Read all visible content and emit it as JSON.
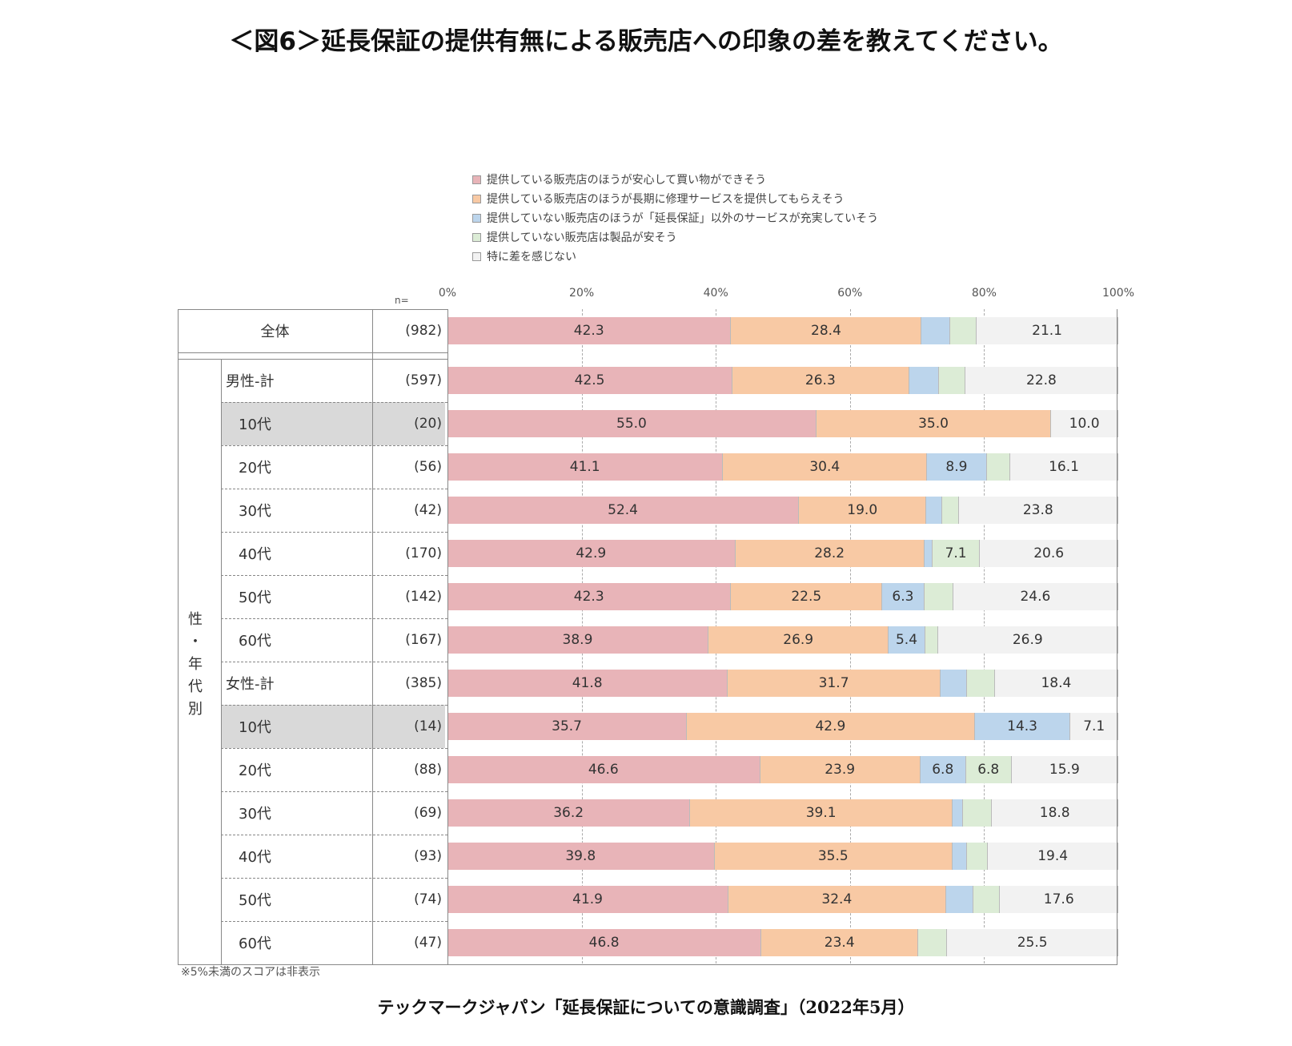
{
  "title": "＜図6＞延長保証の提供有無による販売店への印象の差を教えてください。",
  "source": "テックマークジャパン「延長保証についての意識調査」（2022年5月）",
  "footnote": "※5%未満のスコアは非表示",
  "n_label": "n=",
  "side_label": "性・年代別",
  "colors": {
    "pink": "#e8b4b8",
    "orange": "#f8c9a4",
    "blue": "#bcd5ec",
    "green": "#dcecd6",
    "white": "#f2f2f2"
  },
  "chart_data": {
    "type": "bar",
    "orientation": "horizontal-stacked-100",
    "legend": [
      "提供している販売店のほうが安心して買い物ができそう",
      "提供している販売店のほうが長期に修理サービスを提供してもらえそう",
      "提供していない販売店のほうが「延長保証」以外のサービスが充実していそう",
      "提供していない販売店は製品が安そう",
      "特に差を感じない"
    ],
    "axis_ticks": [
      "0%",
      "20%",
      "40%",
      "60%",
      "80%",
      "100%"
    ],
    "xlim": [
      0,
      100
    ],
    "rows": [
      {
        "label": "全体",
        "n": "(982)",
        "group": "total",
        "values": [
          42.3,
          28.4,
          4.2,
          4.0,
          21.1
        ],
        "labels": [
          "42.3",
          "28.4",
          "",
          "",
          "21.1"
        ]
      },
      {
        "label": "男性-計",
        "n": "(597)",
        "group": "male",
        "values": [
          42.5,
          26.3,
          4.5,
          3.9,
          22.8
        ],
        "labels": [
          "42.5",
          "26.3",
          "",
          "",
          "22.8"
        ]
      },
      {
        "label": "10代",
        "n": "(20)",
        "group": "male",
        "shaded": true,
        "values": [
          55.0,
          35.0,
          0,
          0,
          10.0
        ],
        "labels": [
          "55.0",
          "35.0",
          "",
          "",
          "10.0"
        ]
      },
      {
        "label": "20代",
        "n": "(56)",
        "group": "male",
        "values": [
          41.1,
          30.4,
          8.9,
          3.5,
          16.1
        ],
        "labels": [
          "41.1",
          "30.4",
          "8.9",
          "",
          "16.1"
        ]
      },
      {
        "label": "30代",
        "n": "(42)",
        "group": "male",
        "values": [
          52.4,
          19.0,
          2.4,
          2.4,
          23.8
        ],
        "labels": [
          "52.4",
          "19.0",
          "",
          "",
          "23.8"
        ]
      },
      {
        "label": "40代",
        "n": "(170)",
        "group": "male",
        "values": [
          42.9,
          28.2,
          1.2,
          7.1,
          20.6
        ],
        "labels": [
          "42.9",
          "28.2",
          "",
          "7.1",
          "20.6"
        ]
      },
      {
        "label": "50代",
        "n": "(142)",
        "group": "male",
        "values": [
          42.3,
          22.5,
          6.3,
          4.3,
          24.6
        ],
        "labels": [
          "42.3",
          "22.5",
          "6.3",
          "",
          "24.6"
        ]
      },
      {
        "label": "60代",
        "n": "(167)",
        "group": "male",
        "values": [
          38.9,
          26.9,
          5.4,
          1.9,
          26.9
        ],
        "labels": [
          "38.9",
          "26.9",
          "5.4",
          "",
          "26.9"
        ]
      },
      {
        "label": "女性-計",
        "n": "(385)",
        "group": "female",
        "values": [
          41.8,
          31.7,
          3.9,
          4.2,
          18.4
        ],
        "labels": [
          "41.8",
          "31.7",
          "",
          "",
          "18.4"
        ]
      },
      {
        "label": "10代",
        "n": "(14)",
        "group": "female",
        "shaded": true,
        "values": [
          35.7,
          42.9,
          14.3,
          0,
          7.1
        ],
        "labels": [
          "35.7",
          "42.9",
          "14.3",
          "",
          "7.1"
        ]
      },
      {
        "label": "20代",
        "n": "(88)",
        "group": "female",
        "values": [
          46.6,
          23.9,
          6.8,
          6.8,
          15.9
        ],
        "labels": [
          "46.6",
          "23.9",
          "6.8",
          "6.8",
          "15.9"
        ]
      },
      {
        "label": "30代",
        "n": "(69)",
        "group": "female",
        "values": [
          36.2,
          39.1,
          1.5,
          4.4,
          18.8
        ],
        "labels": [
          "36.2",
          "39.1",
          "",
          "",
          "18.8"
        ]
      },
      {
        "label": "40代",
        "n": "(93)",
        "group": "female",
        "values": [
          39.8,
          35.5,
          2.2,
          3.1,
          19.4
        ],
        "labels": [
          "39.8",
          "35.5",
          "",
          "",
          "19.4"
        ]
      },
      {
        "label": "50代",
        "n": "(74)",
        "group": "female",
        "values": [
          41.9,
          32.4,
          4.1,
          4.0,
          17.6
        ],
        "labels": [
          "41.9",
          "32.4",
          "",
          "",
          "17.6"
        ]
      },
      {
        "label": "60代",
        "n": "(47)",
        "group": "female",
        "values": [
          46.8,
          23.4,
          0,
          4.3,
          25.5
        ],
        "labels": [
          "46.8",
          "23.4",
          "",
          "",
          "25.5"
        ]
      }
    ]
  }
}
